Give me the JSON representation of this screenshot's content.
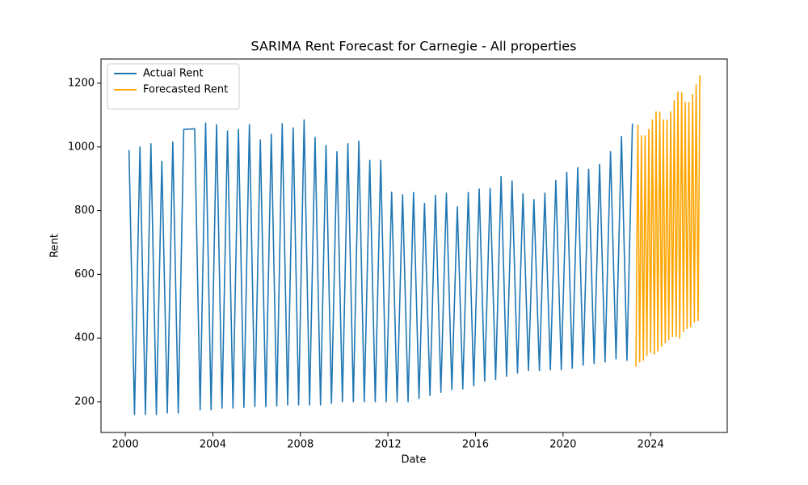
{
  "chart_data": {
    "type": "line",
    "title": "SARIMA Rent Forecast for Carnegie - All properties",
    "x_label": "Date",
    "y_label": "Rent",
    "xlim": [
      1998.89,
      2027.5
    ],
    "xticks": [
      2000,
      2004,
      2008,
      2012,
      2016,
      2020,
      2024
    ],
    "ylim": [
      103.6,
      1276
    ],
    "yticks": [
      200,
      400,
      600,
      800,
      1000,
      1200
    ],
    "legend": "upper left",
    "grid": false,
    "series": [
      {
        "name": "Actual Rent",
        "color": "#1f77b4",
        "x": [
          2000.17,
          2000.42,
          2000.67,
          2000.92,
          2001.17,
          2001.42,
          2001.67,
          2001.92,
          2002.17,
          2002.42,
          2002.67,
          2002.92,
          2003.17,
          2003.42,
          2003.67,
          2003.92,
          2004.17,
          2004.42,
          2004.67,
          2004.92,
          2005.17,
          2005.42,
          2005.67,
          2005.92,
          2006.17,
          2006.42,
          2006.67,
          2006.92,
          2007.17,
          2007.42,
          2007.67,
          2007.92,
          2008.17,
          2008.42,
          2008.67,
          2008.92,
          2009.17,
          2009.42,
          2009.67,
          2009.92,
          2010.17,
          2010.42,
          2010.67,
          2010.92,
          2011.17,
          2011.42,
          2011.67,
          2011.92,
          2012.17,
          2012.42,
          2012.67,
          2012.92,
          2013.17,
          2013.42,
          2013.67,
          2013.92,
          2014.17,
          2014.42,
          2014.67,
          2014.92,
          2015.17,
          2015.42,
          2015.67,
          2015.92,
          2016.17,
          2016.42,
          2016.67,
          2016.92,
          2017.17,
          2017.42,
          2017.67,
          2017.92,
          2018.17,
          2018.42,
          2018.67,
          2018.92,
          2019.17,
          2019.42,
          2019.67,
          2019.92,
          2020.17,
          2020.42,
          2020.67,
          2020.92,
          2021.17,
          2021.42,
          2021.67,
          2021.92,
          2022.17,
          2022.42,
          2022.67,
          2022.92,
          2023.17
        ],
        "values": [
          990,
          160,
          1000,
          160,
          1010,
          160,
          955,
          165,
          1015,
          165,
          1055,
          1056,
          1057,
          175,
          1075,
          175,
          1070,
          180,
          1050,
          180,
          1055,
          182,
          1070,
          185,
          1022,
          185,
          1040,
          187,
          1073,
          190,
          1060,
          190,
          1085,
          190,
          1030,
          190,
          1005,
          195,
          985,
          200,
          1010,
          200,
          1018,
          200,
          958,
          200,
          958,
          200,
          858,
          200,
          850,
          200,
          857,
          210,
          823,
          220,
          848,
          230,
          855,
          238,
          812,
          240,
          857,
          250,
          868,
          265,
          870,
          270,
          907,
          280,
          893,
          290,
          853,
          298,
          835,
          298,
          855,
          300,
          895,
          300,
          920,
          305,
          935,
          315,
          930,
          320,
          945,
          325,
          985,
          335,
          1033,
          330,
          1073
        ]
      },
      {
        "name": "Forecasted Rent",
        "color": "#ffa500",
        "x": [
          2023.33,
          2023.42,
          2023.5,
          2023.58,
          2023.67,
          2023.75,
          2023.83,
          2023.92,
          2024.0,
          2024.08,
          2024.17,
          2024.25,
          2024.33,
          2024.42,
          2024.5,
          2024.58,
          2024.67,
          2024.75,
          2024.83,
          2024.92,
          2025.0,
          2025.08,
          2025.17,
          2025.25,
          2025.33,
          2025.42,
          2025.5,
          2025.58,
          2025.67,
          2025.75,
          2025.83,
          2025.92,
          2026.0,
          2026.08,
          2026.17,
          2026.25
        ],
        "values": [
          310,
          1068,
          325,
          1035,
          330,
          1035,
          345,
          1055,
          355,
          1085,
          350,
          1110,
          360,
          1110,
          375,
          1085,
          385,
          1085,
          395,
          1110,
          405,
          1145,
          405,
          1172,
          400,
          1170,
          420,
          1140,
          430,
          1140,
          435,
          1165,
          450,
          1195,
          455,
          1225
        ]
      }
    ]
  }
}
